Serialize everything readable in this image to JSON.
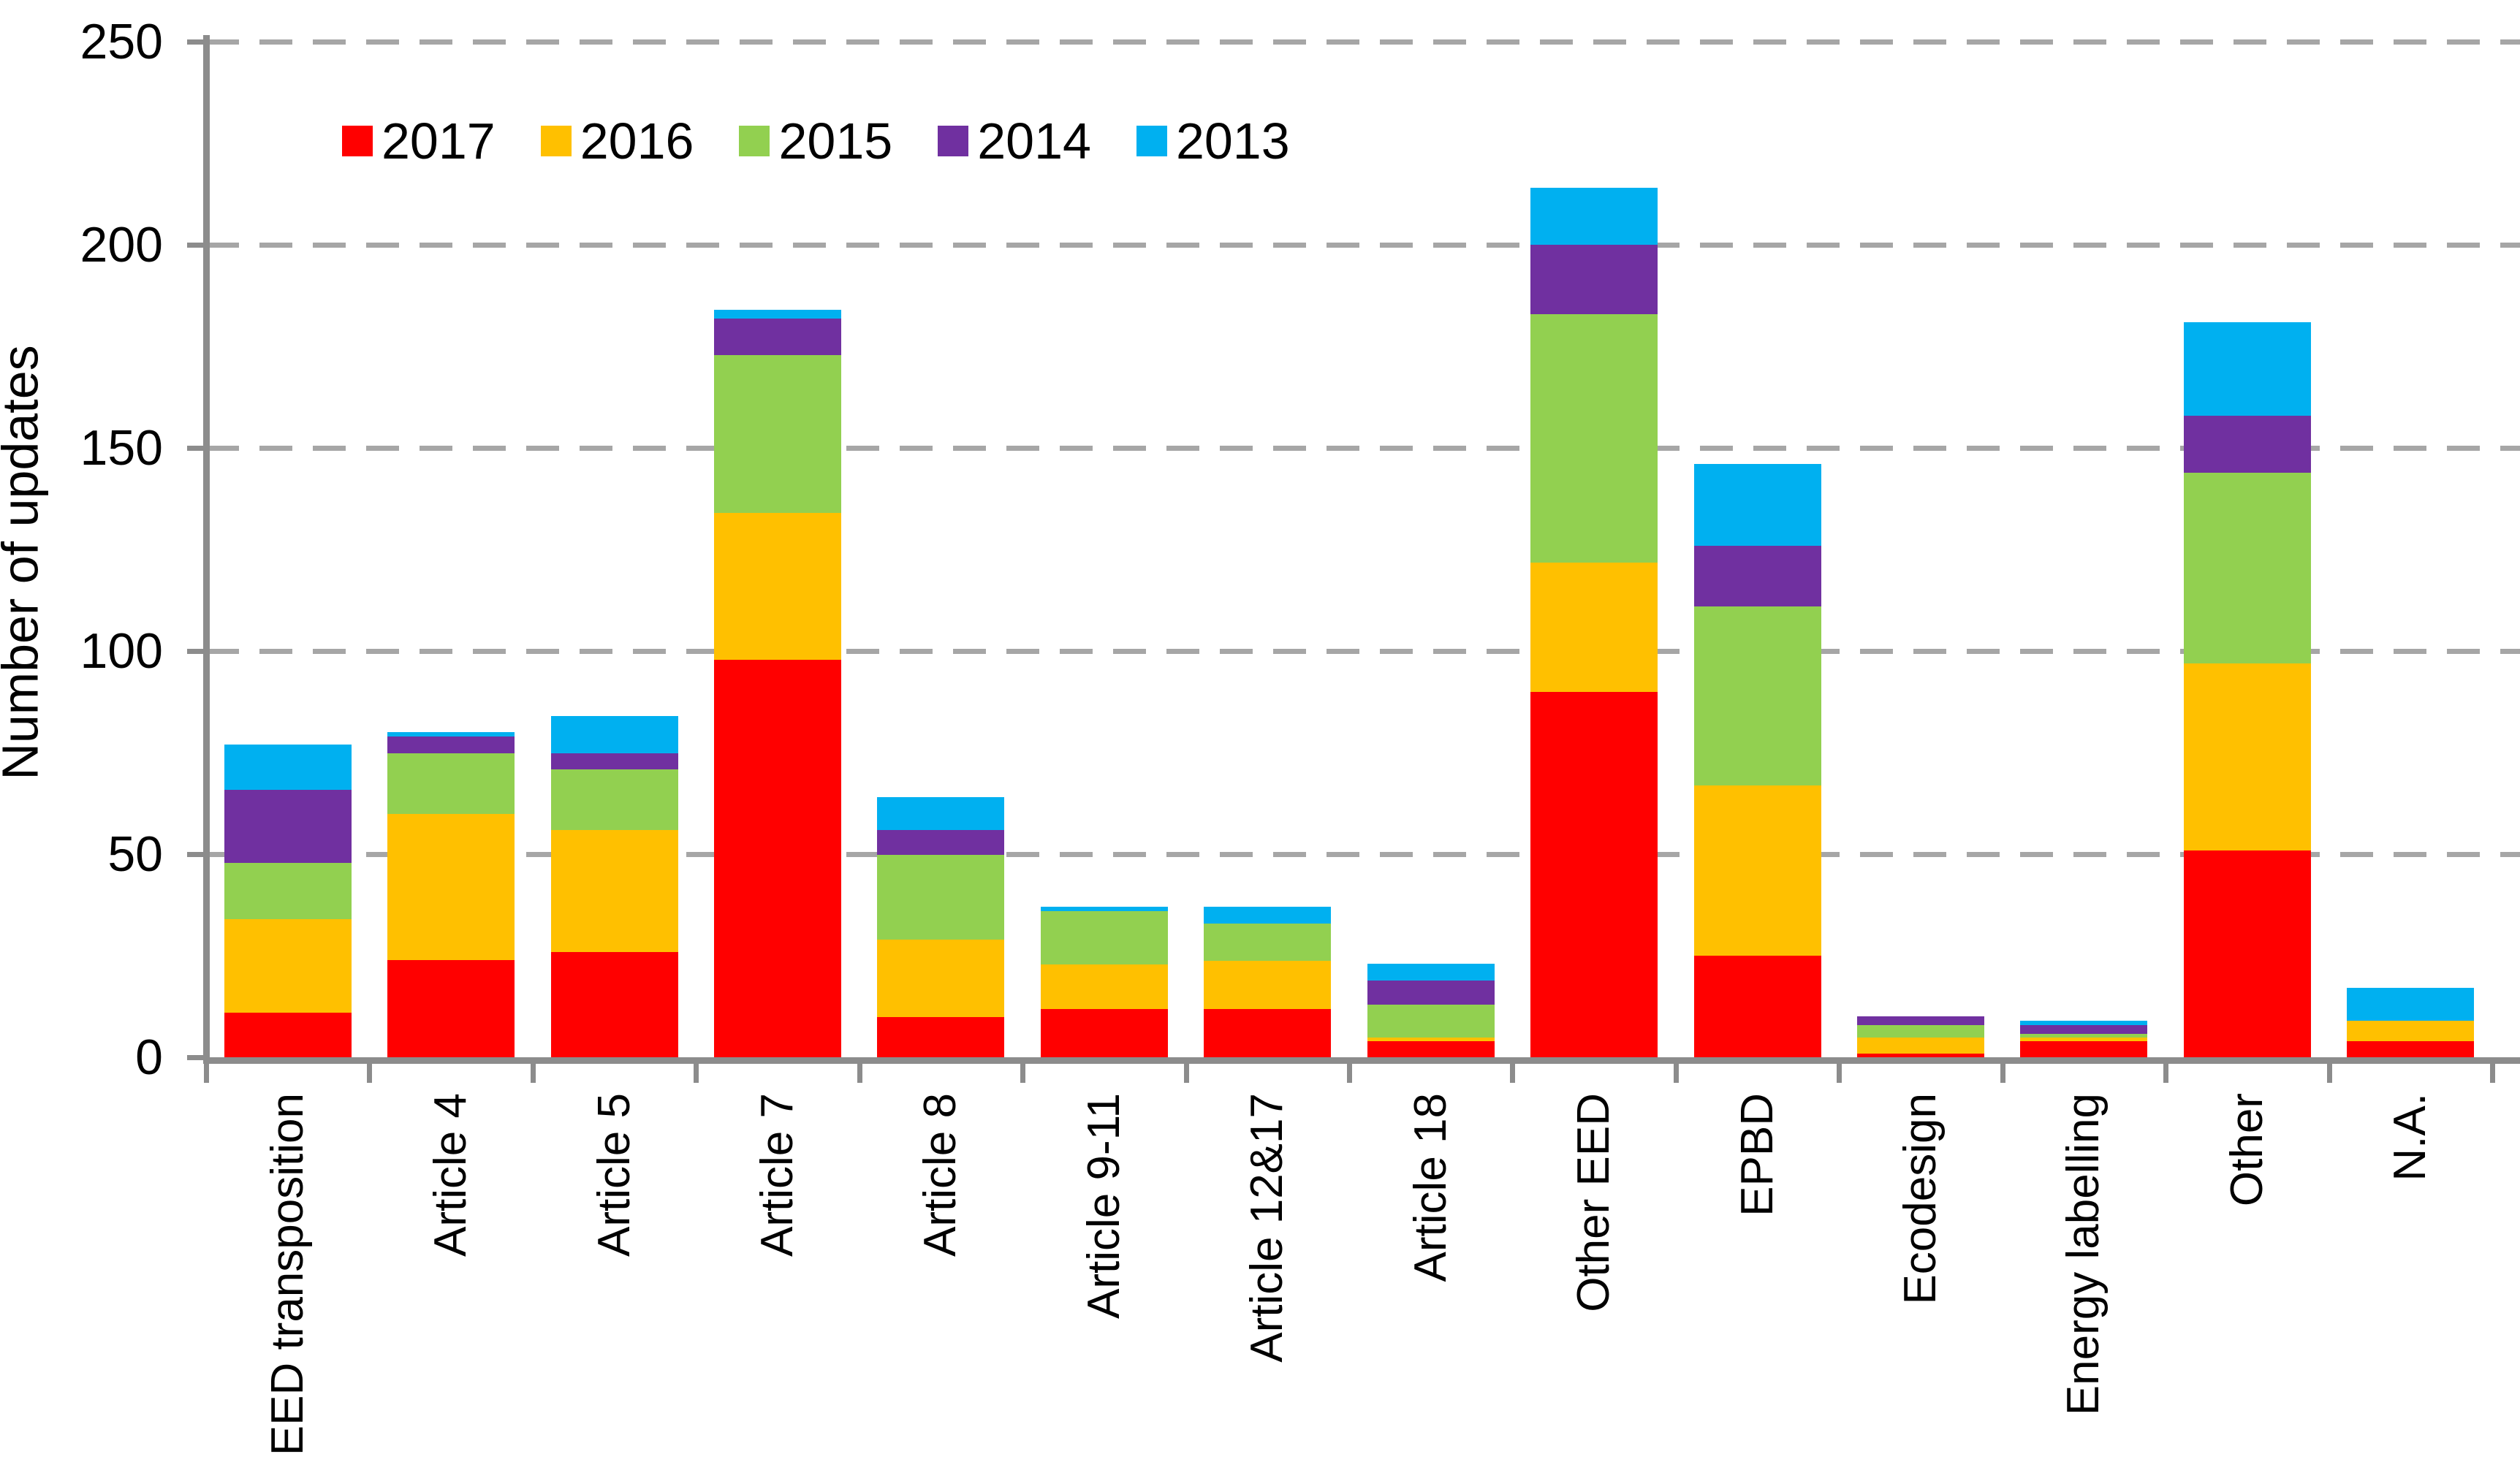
{
  "chart_data": {
    "type": "bar",
    "stacked": true,
    "title": "",
    "xlabel": "",
    "ylabel": "Number of updates",
    "ylim": [
      0,
      250
    ],
    "yticks": [
      0,
      50,
      100,
      150,
      200,
      250
    ],
    "grid": "dashed-horizontal",
    "legend_position": "top-left-inside",
    "categories": [
      "EED transposition",
      "Article 4",
      "Article 5",
      "Article 7",
      "Article 8",
      "Article 9-11",
      "Article 12&17",
      "Article 18",
      "Other EED",
      "EPBD",
      "Ecodesign",
      "Energy labelling",
      "Other",
      "N.A."
    ],
    "series": [
      {
        "name": "2017",
        "color": "#FF0000",
        "values": [
          11,
          24,
          26,
          98,
          10,
          12,
          12,
          4,
          90,
          25,
          1,
          4,
          51,
          4
        ]
      },
      {
        "name": "2016",
        "color": "#FFC000",
        "values": [
          23,
          36,
          30,
          36,
          19,
          11,
          12,
          1,
          32,
          42,
          4,
          1,
          46,
          5
        ]
      },
      {
        "name": "2015",
        "color": "#92D050",
        "values": [
          14,
          15,
          15,
          39,
          21,
          13,
          9,
          8,
          61,
          44,
          3,
          1,
          47,
          0
        ]
      },
      {
        "name": "2014",
        "color": "#7030A0",
        "values": [
          18,
          4,
          4,
          9,
          6,
          0,
          0,
          6,
          17,
          15,
          2,
          2,
          14,
          0
        ]
      },
      {
        "name": "2013",
        "color": "#00B0F0",
        "values": [
          11,
          1,
          9,
          2,
          8,
          1,
          4,
          4,
          14,
          20,
          0,
          1,
          23,
          8
        ]
      }
    ],
    "totals": [
      77,
      80,
      84,
      184,
      64,
      37,
      37,
      23,
      214,
      146,
      10,
      9,
      181,
      17
    ],
    "colors": {
      "axis": "#8c8c8c",
      "gridline": "#a6a6a6",
      "text": "#000000",
      "background": "#ffffff"
    }
  }
}
